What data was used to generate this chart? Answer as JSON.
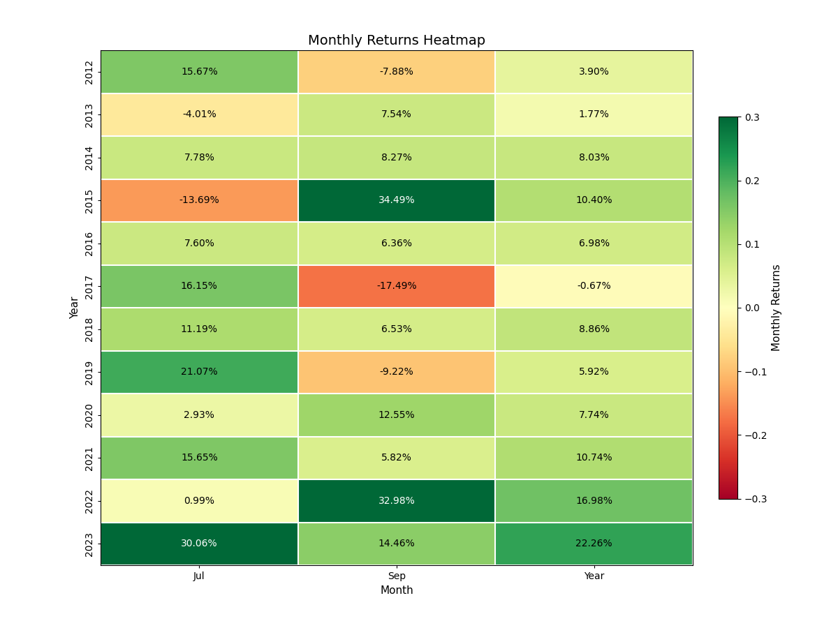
{
  "title": "Monthly Returns Heatmap",
  "xlabel": "Month",
  "ylabel": "Year",
  "colorbar_label": "Monthly Returns",
  "columns": [
    "Jul",
    "Sep",
    "Year"
  ],
  "years": [
    2012,
    2013,
    2014,
    2015,
    2016,
    2017,
    2018,
    2019,
    2020,
    2021,
    2022,
    2023
  ],
  "values": [
    [
      15.67,
      -7.88,
      3.9
    ],
    [
      -4.01,
      7.54,
      1.77
    ],
    [
      7.78,
      8.27,
      8.03
    ],
    [
      -13.69,
      34.49,
      10.4
    ],
    [
      7.6,
      6.36,
      6.98
    ],
    [
      16.15,
      -17.49,
      -0.67
    ],
    [
      11.19,
      6.53,
      8.86
    ],
    [
      21.07,
      -9.22,
      5.92
    ],
    [
      2.93,
      12.55,
      7.74
    ],
    [
      15.65,
      5.82,
      10.74
    ],
    [
      0.99,
      32.98,
      16.98
    ],
    [
      30.06,
      14.46,
      22.26
    ]
  ],
  "vmin": -0.3,
  "vmax": 0.3,
  "colormap": "RdYlGn",
  "title_fontsize": 14,
  "label_fontsize": 11,
  "tick_fontsize": 10,
  "annotation_fontsize": 10,
  "figsize": [
    12,
    9
  ],
  "dpi": 100,
  "colorbar_ticks": [
    -0.3,
    -0.2,
    -0.1,
    0.0,
    0.1,
    0.2,
    0.3
  ],
  "colorbar_ticklabels": [
    "−0.3",
    "−0.2",
    "−0.1",
    "0.0",
    "0.1",
    "0.2",
    "0.3"
  ]
}
